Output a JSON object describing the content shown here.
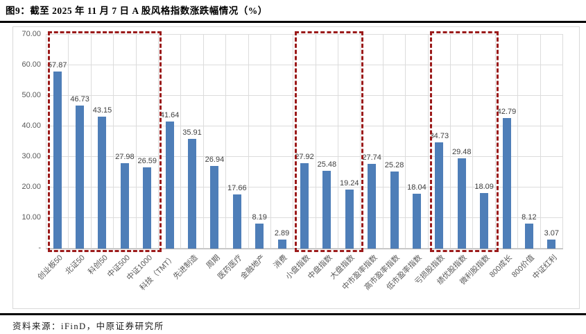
{
  "title": "图9：截至 2025 年 11 月 7 日 A 股风格指数涨跌幅情况（%）",
  "footer": {
    "source": "资料来源：iFinD，中原证券研究所"
  },
  "colors": {
    "bar": "#4E7EB8",
    "highlight": "#9B1A1A",
    "gridline": "#dcdcdc",
    "axis_text": "#595959"
  },
  "chart_data": {
    "type": "bar",
    "title": "A股风格指数涨跌幅（%）",
    "xlabel": "",
    "ylabel": "",
    "ylim": [
      0,
      70
    ],
    "grid": true,
    "legend": "none",
    "y_ticks": [
      "70.00",
      "60.00",
      "50.00",
      "40.00",
      "30.00",
      "20.00",
      "10.00",
      "-"
    ],
    "categories": [
      "创业板50",
      "北证50",
      "科创50",
      "中证500",
      "中证1000",
      "科技（TMT）",
      "先进制造",
      "周期",
      "医药医疗",
      "金融地产",
      "消费",
      "小盘指数",
      "中盘指数",
      "大盘指数",
      "中市盈率指数",
      "高市盈率指数",
      "低市盈率指数",
      "亏损股指数",
      "绩优股指数",
      "微利股指数",
      "800成长",
      "800价值",
      "中证红利"
    ],
    "values": [
      57.87,
      46.73,
      43.15,
      27.98,
      26.59,
      41.64,
      35.91,
      26.94,
      17.66,
      8.19,
      2.89,
      27.92,
      25.48,
      19.24,
      27.74,
      25.28,
      18.04,
      34.73,
      29.48,
      18.09,
      42.79,
      8.12,
      3.07
    ],
    "highlight_boxes": [
      {
        "from": 0,
        "to": 4
      },
      {
        "from": 11,
        "to": 13
      },
      {
        "from": 17,
        "to": 19
      }
    ]
  }
}
